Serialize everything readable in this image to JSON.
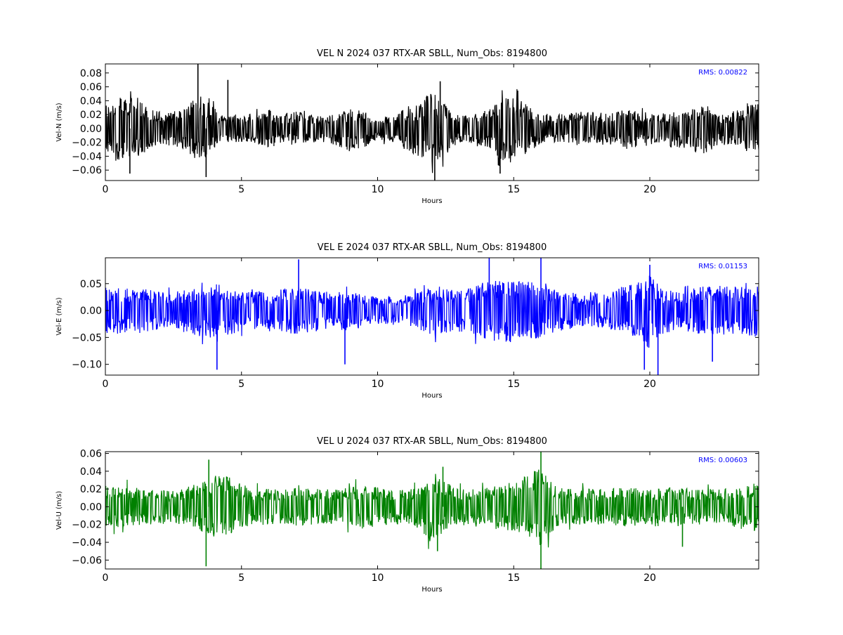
{
  "chart_data": [
    {
      "type": "line",
      "title": "VEL N 2024 037 RTX-AR  SBLL, Num_Obs: 8194800",
      "xlabel": "Hours",
      "ylabel": "Vel-N (m/s)",
      "xlim": [
        0,
        24
      ],
      "ylim": [
        -0.075,
        0.093
      ],
      "xticks": [
        0,
        5,
        10,
        15,
        20
      ],
      "yticks": [
        -0.06,
        -0.04,
        -0.02,
        0.0,
        0.02,
        0.04,
        0.06,
        0.08
      ],
      "ytick_labels": [
        "−0.06",
        "−0.04",
        "−0.02",
        "0.00",
        "0.02",
        "0.04",
        "0.06",
        "0.08"
      ],
      "grid": false,
      "color": "#000000",
      "annotation": "RMS:  0.00822",
      "rms": 0.00822,
      "series": [
        {
          "x": [
            0,
            0.5,
            0.9,
            1.5,
            2,
            2.5,
            3,
            3.4,
            3.7,
            4.2,
            5,
            5.5,
            6,
            6.5,
            7,
            7.5,
            8,
            8.5,
            9,
            9.5,
            10,
            10.5,
            11,
            11.5,
            12,
            12.3,
            13,
            13.5,
            14,
            14.5,
            14.9,
            15.5,
            16,
            16.5,
            17,
            17.5,
            18,
            18.5,
            19,
            19.5,
            20,
            20.5,
            21,
            21.5,
            22,
            22.5,
            23,
            23.5,
            24
          ],
          "envelope_upper": [
            0.035,
            0.045,
            0.055,
            0.035,
            0.025,
            0.025,
            0.03,
            0.05,
            0.045,
            0.02,
            0.02,
            0.022,
            0.028,
            0.02,
            0.025,
            0.02,
            0.018,
            0.022,
            0.028,
            0.025,
            0.015,
            0.02,
            0.028,
            0.035,
            0.055,
            0.04,
            0.018,
            0.02,
            0.025,
            0.04,
            0.048,
            0.035,
            0.02,
            0.02,
            0.022,
            0.025,
            0.025,
            0.02,
            0.028,
            0.025,
            0.02,
            0.022,
            0.025,
            0.03,
            0.04,
            0.018,
            0.025,
            0.03,
            0.04
          ],
          "envelope_lower": [
            -0.035,
            -0.045,
            -0.05,
            -0.035,
            -0.025,
            -0.025,
            -0.035,
            -0.05,
            -0.045,
            -0.02,
            -0.02,
            -0.022,
            -0.028,
            -0.02,
            -0.025,
            -0.02,
            -0.02,
            -0.025,
            -0.035,
            -0.028,
            -0.015,
            -0.02,
            -0.03,
            -0.04,
            -0.055,
            -0.045,
            -0.02,
            -0.02,
            -0.028,
            -0.045,
            -0.05,
            -0.035,
            -0.022,
            -0.02,
            -0.022,
            -0.025,
            -0.025,
            -0.022,
            -0.03,
            -0.028,
            -0.025,
            -0.025,
            -0.028,
            -0.03,
            -0.045,
            -0.02,
            -0.025,
            -0.03,
            -0.045
          ],
          "spikes": [
            [
              3.4,
              0.093
            ],
            [
              4.5,
              0.07
            ],
            [
              3.7,
              -0.07
            ],
            [
              0.9,
              -0.065
            ],
            [
              12.1,
              -0.075
            ],
            [
              14.5,
              -0.065
            ],
            [
              12.3,
              0.068
            ]
          ]
        }
      ]
    },
    {
      "type": "line",
      "title": "VEL E 2024 037 RTX-AR  SBLL, Num_Obs: 8194800",
      "xlabel": "Hours",
      "ylabel": "Vel-E (m/s)",
      "xlim": [
        0,
        24
      ],
      "ylim": [
        -0.12,
        0.098
      ],
      "xticks": [
        0,
        5,
        10,
        15,
        20
      ],
      "yticks": [
        -0.1,
        -0.05,
        0.0,
        0.05
      ],
      "ytick_labels": [
        "−0.10",
        "−0.05",
        "0.00",
        "0.05"
      ],
      "grid": false,
      "color": "#0000ff",
      "annotation": "RMS:  0.01153",
      "rms": 0.01153,
      "series": [
        {
          "x": [
            0,
            0.5,
            1,
            1.5,
            2,
            2.5,
            3,
            3.5,
            4,
            4.5,
            5,
            5.5,
            6,
            6.5,
            7,
            7.5,
            8,
            8.5,
            9,
            9.5,
            10,
            10.5,
            11,
            11.5,
            12,
            12.5,
            13,
            13.5,
            14,
            14.5,
            15,
            15.5,
            16,
            16.5,
            17,
            17.5,
            18,
            18.5,
            19,
            19.5,
            20,
            20.5,
            21,
            21.5,
            22,
            22.5,
            23,
            23.5,
            24
          ],
          "envelope_upper": [
            0.045,
            0.045,
            0.04,
            0.04,
            0.035,
            0.035,
            0.04,
            0.045,
            0.045,
            0.04,
            0.035,
            0.035,
            0.035,
            0.04,
            0.045,
            0.04,
            0.035,
            0.035,
            0.035,
            0.03,
            0.025,
            0.025,
            0.03,
            0.035,
            0.045,
            0.045,
            0.04,
            0.045,
            0.055,
            0.06,
            0.055,
            0.055,
            0.05,
            0.04,
            0.035,
            0.03,
            0.03,
            0.035,
            0.045,
            0.05,
            0.065,
            0.04,
            0.035,
            0.04,
            0.045,
            0.05,
            0.045,
            0.045,
            0.05
          ],
          "envelope_lower": [
            -0.045,
            -0.045,
            -0.04,
            -0.04,
            -0.035,
            -0.035,
            -0.045,
            -0.05,
            -0.05,
            -0.045,
            -0.04,
            -0.035,
            -0.035,
            -0.04,
            -0.045,
            -0.04,
            -0.035,
            -0.035,
            -0.04,
            -0.03,
            -0.025,
            -0.025,
            -0.03,
            -0.035,
            -0.045,
            -0.045,
            -0.04,
            -0.045,
            -0.055,
            -0.06,
            -0.06,
            -0.055,
            -0.05,
            -0.04,
            -0.035,
            -0.03,
            -0.03,
            -0.035,
            -0.045,
            -0.055,
            -0.07,
            -0.045,
            -0.035,
            -0.04,
            -0.045,
            -0.05,
            -0.045,
            -0.045,
            -0.05
          ],
          "spikes": [
            [
              7.1,
              0.095
            ],
            [
              14.1,
              0.098
            ],
            [
              16.0,
              0.098
            ],
            [
              20.0,
              0.085
            ],
            [
              4.1,
              -0.11
            ],
            [
              8.8,
              -0.1
            ],
            [
              20.3,
              -0.12
            ],
            [
              19.8,
              -0.11
            ],
            [
              22.3,
              -0.095
            ]
          ]
        }
      ]
    },
    {
      "type": "line",
      "title": "VEL U 2024 037 RTX-AR  SBLL, Num_Obs: 8194800",
      "xlabel": "Hours",
      "ylabel": "Vel-U (m/s)",
      "xlim": [
        0,
        24
      ],
      "ylim": [
        -0.07,
        0.062
      ],
      "xticks": [
        0,
        5,
        10,
        15,
        20
      ],
      "yticks": [
        -0.06,
        -0.04,
        -0.02,
        0.0,
        0.02,
        0.04,
        0.06
      ],
      "ytick_labels": [
        "−0.06",
        "−0.04",
        "−0.02",
        "0.00",
        "0.02",
        "0.04",
        "0.06"
      ],
      "grid": false,
      "color": "#008000",
      "annotation": "RMS:  0.00603",
      "rms": 0.00603,
      "series": [
        {
          "x": [
            0,
            0.5,
            1,
            1.5,
            2,
            2.5,
            3,
            3.5,
            4,
            4.5,
            5,
            5.5,
            6,
            6.5,
            7,
            7.5,
            8,
            8.5,
            9,
            9.5,
            10,
            10.5,
            11,
            11.5,
            12,
            12.5,
            13,
            13.5,
            14,
            14.5,
            15,
            15.5,
            16,
            16.5,
            17,
            17.5,
            18,
            18.5,
            19,
            19.5,
            20,
            20.5,
            21,
            21.5,
            22,
            22.5,
            23,
            23.5,
            24
          ],
          "envelope_upper": [
            0.025,
            0.025,
            0.022,
            0.02,
            0.02,
            0.018,
            0.022,
            0.03,
            0.035,
            0.035,
            0.025,
            0.022,
            0.02,
            0.02,
            0.022,
            0.02,
            0.02,
            0.02,
            0.022,
            0.025,
            0.022,
            0.02,
            0.02,
            0.025,
            0.035,
            0.028,
            0.022,
            0.02,
            0.022,
            0.025,
            0.028,
            0.035,
            0.045,
            0.025,
            0.02,
            0.02,
            0.02,
            0.02,
            0.022,
            0.022,
            0.02,
            0.02,
            0.022,
            0.02,
            0.02,
            0.02,
            0.022,
            0.025,
            0.028
          ],
          "envelope_lower": [
            -0.025,
            -0.025,
            -0.022,
            -0.02,
            -0.02,
            -0.018,
            -0.022,
            -0.03,
            -0.035,
            -0.035,
            -0.025,
            -0.022,
            -0.02,
            -0.02,
            -0.022,
            -0.02,
            -0.02,
            -0.02,
            -0.022,
            -0.025,
            -0.022,
            -0.02,
            -0.02,
            -0.025,
            -0.04,
            -0.03,
            -0.022,
            -0.02,
            -0.022,
            -0.025,
            -0.028,
            -0.035,
            -0.045,
            -0.025,
            -0.02,
            -0.02,
            -0.02,
            -0.02,
            -0.022,
            -0.022,
            -0.02,
            -0.02,
            -0.022,
            -0.02,
            -0.02,
            -0.02,
            -0.022,
            -0.025,
            -0.03
          ],
          "spikes": [
            [
              3.8,
              0.053
            ],
            [
              16.0,
              0.062
            ],
            [
              12.4,
              0.045
            ],
            [
              3.7,
              -0.067
            ],
            [
              16.0,
              -0.07
            ],
            [
              12.2,
              -0.05
            ],
            [
              21.2,
              -0.045
            ]
          ]
        }
      ]
    }
  ]
}
